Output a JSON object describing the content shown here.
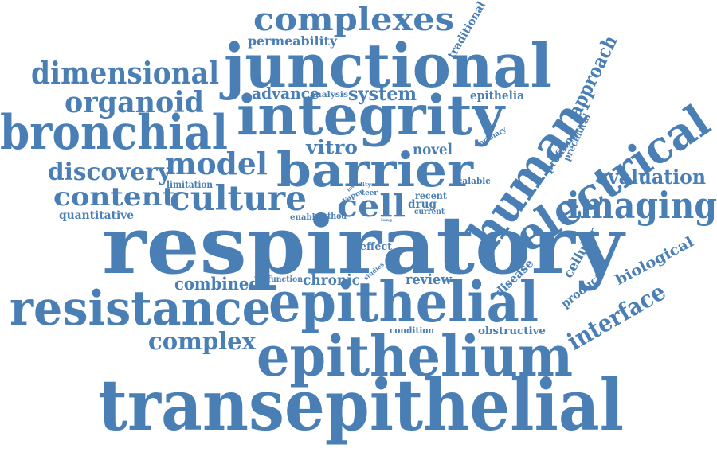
{
  "cloud": {
    "color": "#4a7fb5",
    "words": [
      "respiratory",
      "transepithelial",
      "epithelium",
      "epithelial",
      "junctional",
      "integrity",
      "barrier",
      "resistance",
      "bronchial",
      "human",
      "electrical",
      "complexes",
      "imaging",
      "culture",
      "dimensional",
      "organoid",
      "model",
      "cell",
      "content",
      "discovery",
      "evaluation",
      "interface",
      "complex",
      "vitro",
      "system",
      "advance",
      "novel",
      "combined",
      "chronic",
      "review",
      "approach",
      "biological",
      "cellular",
      "product",
      "disease",
      "permeability",
      "traditional",
      "epithelia",
      "analysis",
      "limitation",
      "quantitative",
      "enable",
      "method",
      "drug",
      "recent",
      "current",
      "scalable",
      "effect",
      "function",
      "studies",
      "condition",
      "obstructive",
      "profiling",
      "preclinical",
      "primary",
      "vapor",
      "teer",
      "utility",
      "lung",
      "low"
    ]
  }
}
